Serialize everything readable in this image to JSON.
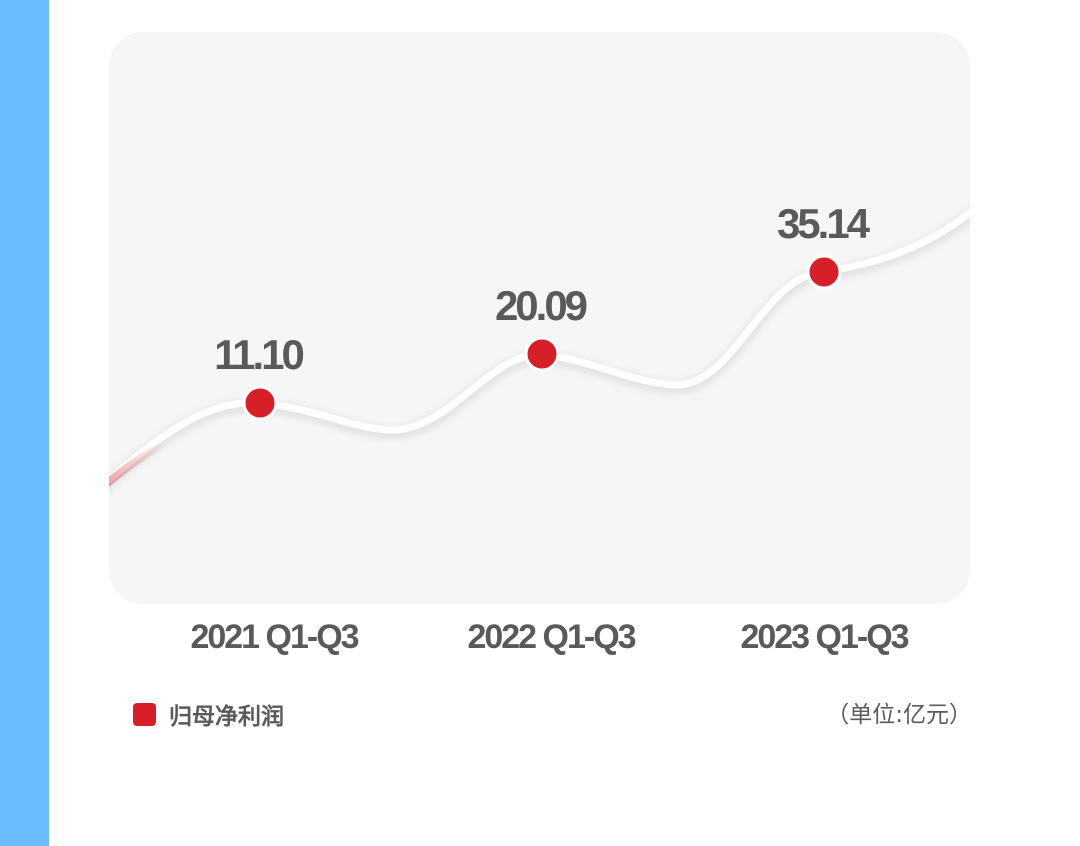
{
  "colors": {
    "side_bar": "#6bbcfd",
    "series": "#d71f27",
    "panel": "#f6f6f6",
    "line": "#ffffff",
    "text": "#5a5a5a"
  },
  "chart_data": {
    "type": "line",
    "categories": [
      "2021 Q1-Q3",
      "2022 Q1-Q3",
      "2023 Q1-Q3"
    ],
    "series": [
      {
        "name": "归母净利润",
        "values": [
          11.1,
          20.09,
          35.14
        ],
        "labels": [
          "11.10",
          "20.09",
          "35.14"
        ]
      }
    ],
    "unit": "（单位:亿元）",
    "grid": false,
    "legend_position": "bottom-left"
  }
}
